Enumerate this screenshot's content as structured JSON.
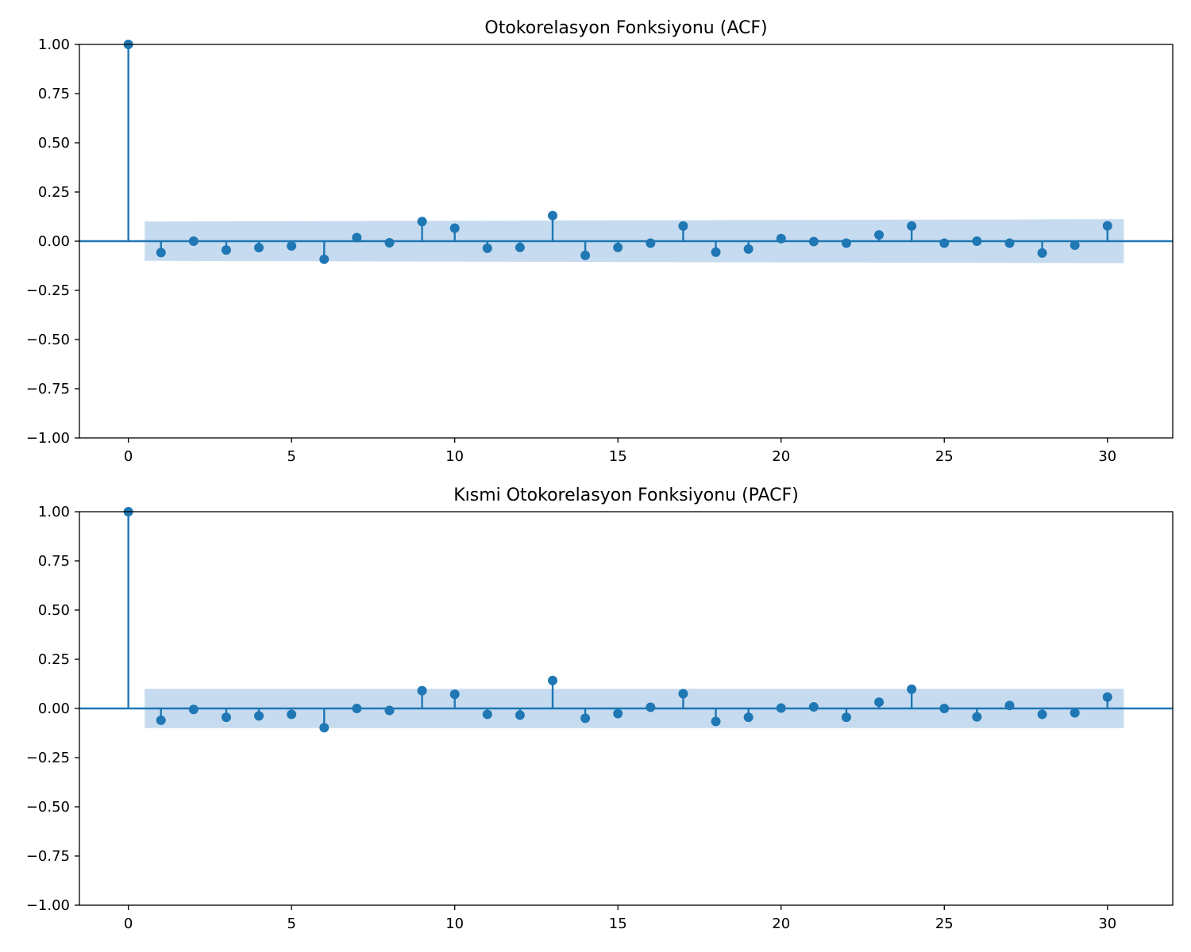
{
  "colors": {
    "stem": "#1f77b4",
    "confidence_band": "#c6dbef",
    "axis": "#000000"
  },
  "chart_data": [
    {
      "type": "stem",
      "title": "Otokorelasyon Fonksiyonu (ACF)",
      "xlim": [
        -1.5,
        32
      ],
      "ylim": [
        -1.0,
        1.0
      ],
      "x_ticks": [
        0,
        5,
        10,
        15,
        20,
        25,
        30
      ],
      "y_ticks": [
        1.0,
        0.75,
        0.5,
        0.25,
        0.0,
        -0.25,
        -0.5,
        -0.75,
        -1.0
      ],
      "x_tick_labels": [
        "0",
        "5",
        "10",
        "15",
        "20",
        "25",
        "30"
      ],
      "y_tick_labels": [
        "1.00",
        "0.75",
        "0.50",
        "0.25",
        "0.00",
        "−0.25",
        "−0.50",
        "−0.75",
        "−1.00"
      ],
      "lags": [
        0,
        1,
        2,
        3,
        4,
        5,
        6,
        7,
        8,
        9,
        10,
        11,
        12,
        13,
        14,
        15,
        16,
        17,
        18,
        19,
        20,
        21,
        22,
        23,
        24,
        25,
        26,
        27,
        28,
        29,
        30
      ],
      "values": [
        1.0,
        -0.058,
        0.0,
        -0.045,
        -0.033,
        -0.024,
        -0.092,
        0.018,
        -0.008,
        0.1,
        0.066,
        -0.036,
        -0.032,
        0.13,
        -0.072,
        -0.032,
        -0.01,
        0.077,
        -0.056,
        -0.04,
        0.013,
        -0.002,
        -0.01,
        0.032,
        0.077,
        -0.01,
        0.0,
        -0.01,
        -0.06,
        -0.02,
        0.078
      ],
      "confidence_band": {
        "x_start": 0.5,
        "x_end": 30.5,
        "upper_start": 0.1,
        "upper_end": 0.112,
        "lower_start": -0.1,
        "lower_end": -0.112
      }
    },
    {
      "type": "stem",
      "title": "Kısmi Otokorelasyon Fonksiyonu (PACF)",
      "xlim": [
        -1.5,
        32
      ],
      "ylim": [
        -1.0,
        1.0
      ],
      "x_ticks": [
        0,
        5,
        10,
        15,
        20,
        25,
        30
      ],
      "y_ticks": [
        1.0,
        0.75,
        0.5,
        0.25,
        0.0,
        -0.25,
        -0.5,
        -0.75,
        -1.0
      ],
      "x_tick_labels": [
        "0",
        "5",
        "10",
        "15",
        "20",
        "25",
        "30"
      ],
      "y_tick_labels": [
        "1.00",
        "0.75",
        "0.50",
        "0.25",
        "0.00",
        "−0.25",
        "−0.50",
        "−0.75",
        "−1.00"
      ],
      "lags": [
        0,
        1,
        2,
        3,
        4,
        5,
        6,
        7,
        8,
        9,
        10,
        11,
        12,
        13,
        14,
        15,
        16,
        17,
        18,
        19,
        20,
        21,
        22,
        23,
        24,
        25,
        26,
        27,
        28,
        29,
        30
      ],
      "values": [
        1.0,
        -0.06,
        -0.005,
        -0.045,
        -0.038,
        -0.03,
        -0.098,
        0.0,
        -0.01,
        0.09,
        0.072,
        -0.03,
        -0.034,
        0.142,
        -0.05,
        -0.026,
        0.006,
        0.075,
        -0.066,
        -0.045,
        0.002,
        0.008,
        -0.045,
        0.032,
        0.098,
        0.0,
        -0.043,
        0.015,
        -0.03,
        -0.022,
        0.058
      ],
      "confidence_band": {
        "x_start": 0.5,
        "x_end": 30.5,
        "upper_start": 0.1,
        "upper_end": 0.1,
        "lower_start": -0.1,
        "lower_end": -0.1
      }
    }
  ]
}
